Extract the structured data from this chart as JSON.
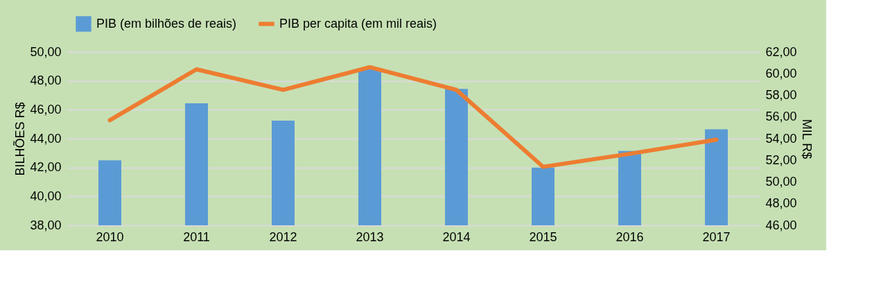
{
  "chart_data": {
    "type": "bar",
    "ylabel": "BILHÕES R$",
    "y2label": "MIL R$",
    "categories": [
      "2010",
      "2011",
      "2012",
      "2013",
      "2014",
      "2015",
      "2016",
      "2017"
    ],
    "series": [
      {
        "name": "PIB (em bilhões de reais)",
        "color": "#5b9bd5",
        "values": [
          42.5,
          46.45,
          45.25,
          48.8,
          47.45,
          42.0,
          43.15,
          44.65
        ]
      },
      {
        "name": "PIB per capita (em mil reais)",
        "type": "line",
        "axis": "y2",
        "color": "#ed7d31",
        "values": [
          55.7,
          60.4,
          58.5,
          60.6,
          58.5,
          51.4,
          52.6,
          53.9
        ]
      }
    ],
    "ylim": [
      38,
      50
    ],
    "yticks": [
      {
        "value": 38,
        "label": "38,00"
      },
      {
        "value": 40,
        "label": "40,00"
      },
      {
        "value": 42,
        "label": "42,00"
      },
      {
        "value": 44,
        "label": "44,00"
      },
      {
        "value": 46,
        "label": "46,00"
      },
      {
        "value": 48,
        "label": "48,00"
      },
      {
        "value": 50,
        "label": "50,00"
      }
    ],
    "y2lim": [
      46,
      62
    ],
    "y2ticks": [
      {
        "value": 46,
        "label": "46,00"
      },
      {
        "value": 48,
        "label": "48,00"
      },
      {
        "value": 50,
        "label": "50,00"
      },
      {
        "value": 52,
        "label": "52,00"
      },
      {
        "value": 54,
        "label": "54,00"
      },
      {
        "value": 56,
        "label": "56,00"
      },
      {
        "value": 58,
        "label": "58,00"
      },
      {
        "value": 60,
        "label": "60,00"
      },
      {
        "value": 62,
        "label": "62,00"
      }
    ],
    "grid": "y",
    "legend": "top",
    "marker": "none",
    "line_style": "solid"
  }
}
